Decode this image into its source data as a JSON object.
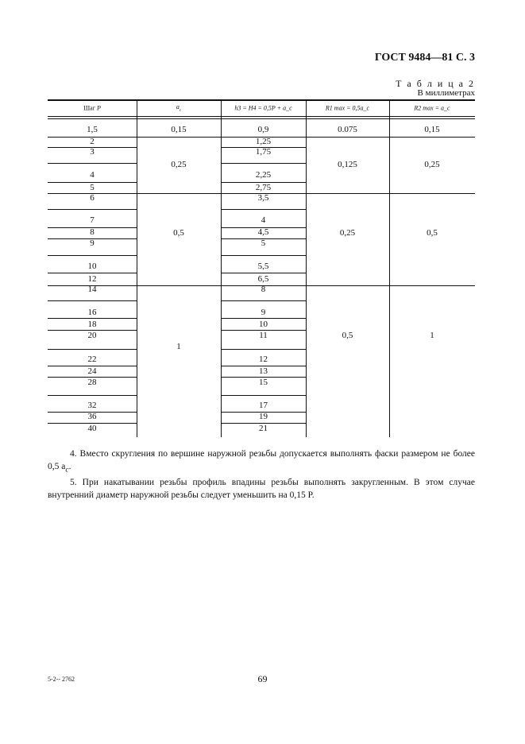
{
  "header": {
    "doc": "ГОСТ 9484—81 С. 3",
    "table_title": "Т а б л и ц а 2",
    "units": "В миллиметрах"
  },
  "table": {
    "columns": [
      "Шаг P",
      "a_c",
      "h3 = H4 = 0,5P + a_c",
      "R1 max = 0,5a_c",
      "R2 max = a_c"
    ],
    "pitch": [
      "1,5",
      "2",
      "3",
      "4",
      "5",
      "6",
      "7",
      "8",
      "9",
      "10",
      "12",
      "14",
      "16",
      "18",
      "20",
      "22",
      "24",
      "28",
      "32",
      "36",
      "40"
    ],
    "h3": [
      "0,9",
      "1,25",
      "1,75",
      "2,25",
      "2,75",
      "3,5",
      "4",
      "4,5",
      "5",
      "5,5",
      "6,5",
      "8",
      "9",
      "10",
      "11",
      "12",
      "13",
      "15",
      "17",
      "19",
      "21"
    ],
    "groups": [
      {
        "ac": "0,15",
        "r1": "0.075",
        "r2": "0,15"
      },
      {
        "ac": "0,25",
        "r1": "0,125",
        "r2": "0,25"
      },
      {
        "ac": "0,5",
        "r1": "0,25",
        "r2": "0,5"
      },
      {
        "ac": "1",
        "r1": "0,5",
        "r2": "1"
      }
    ]
  },
  "notes": [
    "4. Вместо скругления по вершине наружной резьбы допускается выполнять фаски размером не более 0,5 a",
    "5. При накатывании резьбы профиль впадины резьбы выполнять закругленным. В этом случае внутренний диаметр наружной резьбы следует уменьшить на 0,15 P."
  ],
  "note4_sub": "с",
  "footer": {
    "code": "5-2-- 2762",
    "page": "69"
  }
}
